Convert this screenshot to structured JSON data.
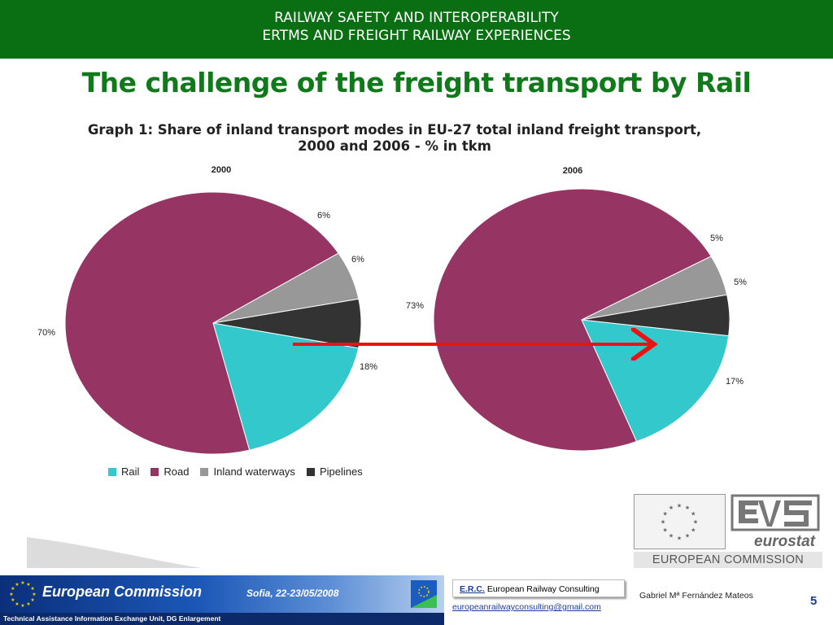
{
  "header": {
    "line1": "RAILWAY SAFETY AND INTEROPERABILITY",
    "line2": "ERTMS AND FREIGHT RAILWAY EXPERIENCES"
  },
  "slide_title": "The challenge of the freight transport by Rail",
  "graph_title": {
    "line1": "Graph 1: Share of inland transport modes in EU-27 total inland freight transport,",
    "line2": "2000 and 2006 - % in tkm"
  },
  "colors": {
    "header_green": "#0a6f13",
    "rail": "#33c8cc",
    "road": "#963464",
    "inland_waterways": "#989898",
    "pipelines": "#333333",
    "arrow": "#ee1111"
  },
  "chart_data": [
    {
      "type": "pie",
      "title": "2000",
      "categories": [
        "Rail",
        "Road",
        "Inland waterways",
        "Pipelines"
      ],
      "values": [
        18,
        70,
        6,
        6
      ],
      "labels": [
        "18%",
        "70%",
        "6%",
        "6%"
      ]
    },
    {
      "type": "pie",
      "title": "2006",
      "categories": [
        "Rail",
        "Road",
        "Inland waterways",
        "Pipelines"
      ],
      "values": [
        17,
        73,
        5,
        5
      ],
      "labels": [
        "17%",
        "73%",
        "5%",
        "5%"
      ]
    }
  ],
  "legend": [
    {
      "label": "Rail",
      "color": "#33c8cc"
    },
    {
      "label": "Road",
      "color": "#963464"
    },
    {
      "label": "Inland waterways",
      "color": "#989898"
    },
    {
      "label": "Pipelines",
      "color": "#333333"
    }
  ],
  "footer": {
    "commission": "European Commission",
    "event": "Sofia, 22-23/05/2008",
    "taiex": "Technical Assistance Information Exchange Unit, DG Enlargement",
    "erc_abbr": "E.R.C.",
    "erc_name": "European Railway Consulting",
    "email": "europeanrailwayconsulting@gmail.com",
    "author": "Gabriel Mª Fernández Mateos",
    "page": "5"
  },
  "logos": {
    "eurostat": "eurostat",
    "commission_label": "EUROPEAN COMMISSION"
  }
}
